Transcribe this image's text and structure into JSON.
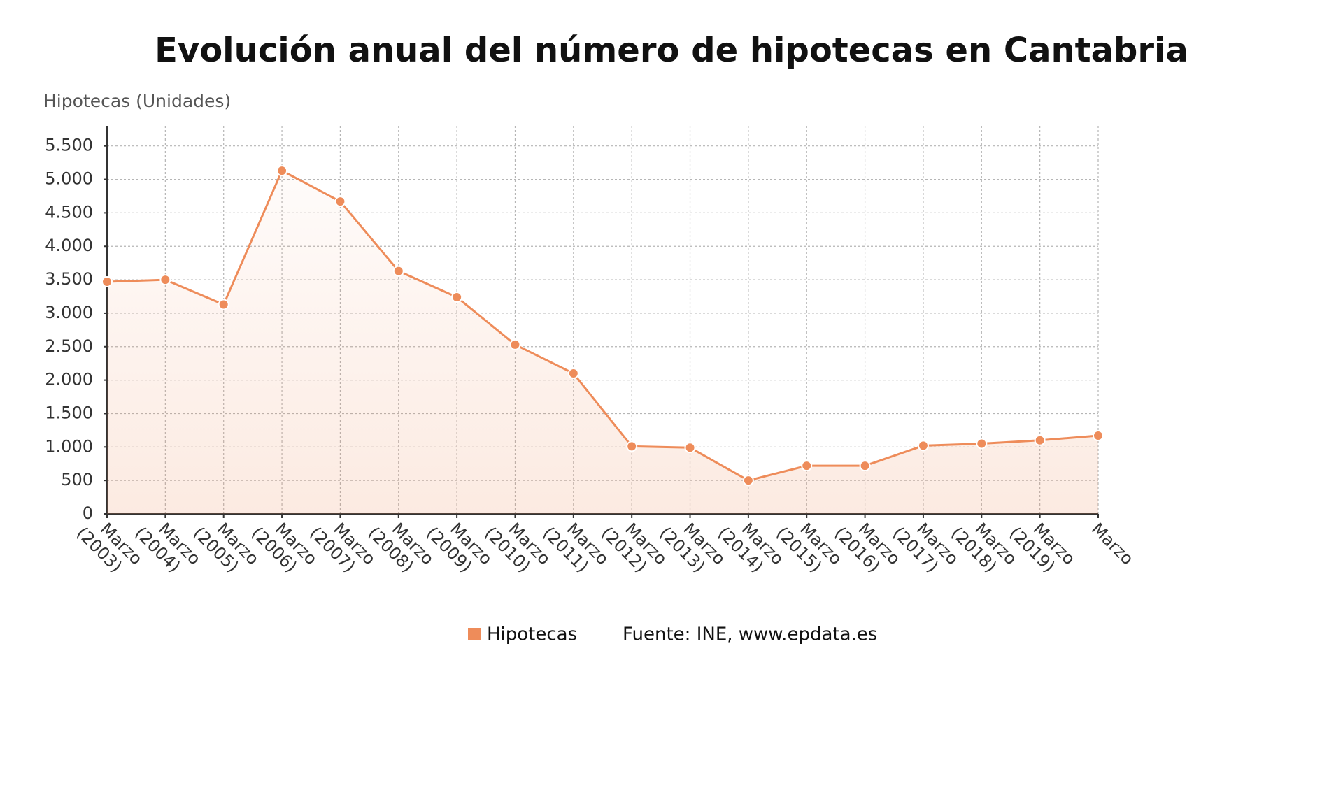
{
  "chart_data": {
    "type": "line",
    "title": "Evolución anual del número de hipotecas en Cantabria",
    "y_label": "Hipotecas (Unidades)",
    "categories": [
      "Marzo (2003)",
      "Marzo (2004)",
      "Marzo (2005)",
      "Marzo (2006)",
      "Marzo (2007)",
      "Marzo (2008)",
      "Marzo (2009)",
      "Marzo (2010)",
      "Marzo (2011)",
      "Marzo (2012)",
      "Marzo (2013)",
      "Marzo (2014)",
      "Marzo (2015)",
      "Marzo (2016)",
      "Marzo (2017)",
      "Marzo (2018)",
      "Marzo (2019)",
      "Marzo"
    ],
    "series": [
      {
        "name": "Hipotecas",
        "color": "#ee8c5a",
        "values": [
          3470,
          3500,
          3130,
          5130,
          4670,
          3630,
          3240,
          2530,
          2100,
          1010,
          990,
          500,
          720,
          720,
          1020,
          1050,
          1100,
          1170
        ]
      }
    ],
    "ylim": [
      0,
      5800
    ],
    "yticks": [
      0,
      500,
      {
        "value": 1000,
        "label": "1.000"
      },
      {
        "value": 1500,
        "label": "1.500"
      },
      {
        "value": 2000,
        "label": "2.000"
      },
      {
        "value": 2500,
        "label": "2.500"
      },
      {
        "value": 3000,
        "label": "3.000"
      },
      {
        "value": 3500,
        "label": "3.500"
      },
      {
        "value": 4000,
        "label": "4.000"
      },
      {
        "value": 4500,
        "label": "4.500"
      },
      {
        "value": 5000,
        "label": "5.000"
      },
      {
        "value": 5500,
        "label": "5.500"
      }
    ],
    "grid": true,
    "source": "Fuente: INE, www.epdata.es"
  }
}
